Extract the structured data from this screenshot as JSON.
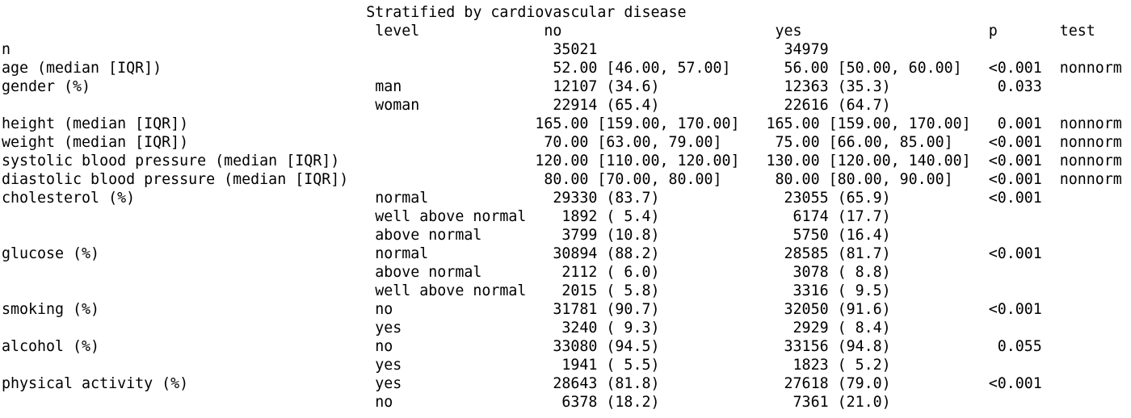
{
  "output": {
    "title": "Stratified by cardiovascular disease",
    "title_col": 41,
    "headers": [
      {
        "label": "level",
        "col": 42
      },
      {
        "label": "no",
        "col": 61
      },
      {
        "label": "yes",
        "col": 87
      },
      {
        "label": "p",
        "col": 111
      },
      {
        "label": "test",
        "col": 119
      }
    ],
    "default_cols": {
      "variable": 0,
      "level": 42,
      "no": 62,
      "yes": 88,
      "p": 111,
      "test": 119
    },
    "rows": [
      {
        "variable": "n",
        "no": "35021",
        "yes": "34979"
      },
      {
        "variable": "age (median [IQR])",
        "no": "52.00 [46.00, 57.00]",
        "yes": "56.00 [50.00, 60.00]",
        "p": "<0.001",
        "test": "nonnorm"
      },
      {
        "variable": "gender (%)",
        "level": "man",
        "no": "12107 (34.6)",
        "yes": "12363 (35.3)",
        "p": " 0.033"
      },
      {
        "level": "woman",
        "no": "22914 (65.4)",
        "yes": "22616 (64.7)"
      },
      {
        "variable": "height (median [IQR])",
        "no": "165.00 [159.00, 170.00]",
        "yes": "165.00 [159.00, 170.00]",
        "p": " 0.001",
        "test": "nonnorm",
        "no_col": 60,
        "yes_col": 86
      },
      {
        "variable": "weight (median [IQR])",
        "no": "70.00 [63.00, 79.00]",
        "yes": "75.00 [66.00, 85.00]",
        "p": "<0.001",
        "test": "nonnorm",
        "no_col": 61,
        "yes_col": 87
      },
      {
        "variable": "systolic blood pressure (median [IQR])",
        "no": "120.00 [110.00, 120.00]",
        "yes": "130.00 [120.00, 140.00]",
        "p": "<0.001",
        "test": "nonnorm",
        "no_col": 60,
        "yes_col": 86
      },
      {
        "variable": "diastolic blood pressure (median [IQR])",
        "no": "80.00 [70.00, 80.00]",
        "yes": "80.00 [80.00, 90.00]",
        "p": "<0.001",
        "test": "nonnorm",
        "no_col": 61,
        "yes_col": 87
      },
      {
        "variable": "cholesterol (%)",
        "level": "normal",
        "no": "29330 (83.7)",
        "yes": "23055 (65.9)",
        "p": "<0.001"
      },
      {
        "level": "well above normal",
        "no": " 1892 ( 5.4)",
        "yes": " 6174 (17.7)"
      },
      {
        "level": "above normal",
        "no": " 3799 (10.8)",
        "yes": " 5750 (16.4)"
      },
      {
        "variable": "glucose (%)",
        "level": "normal",
        "no": "30894 (88.2)",
        "yes": "28585 (81.7)",
        "p": "<0.001"
      },
      {
        "level": "above normal",
        "no": " 2112 ( 6.0)",
        "yes": " 3078 ( 8.8)"
      },
      {
        "level": "well above normal",
        "no": " 2015 ( 5.8)",
        "yes": " 3316 ( 9.5)"
      },
      {
        "variable": "smoking (%)",
        "level": "no",
        "no": "31781 (90.7)",
        "yes": "32050 (91.6)",
        "p": "<0.001"
      },
      {
        "level": "yes",
        "no": " 3240 ( 9.3)",
        "yes": " 2929 ( 8.4)"
      },
      {
        "variable": "alcohol (%)",
        "level": "no",
        "no": "33080 (94.5)",
        "yes": "33156 (94.8)",
        "p": " 0.055"
      },
      {
        "level": "yes",
        "no": " 1941 ( 5.5)",
        "yes": " 1823 ( 5.2)"
      },
      {
        "variable": "physical activity (%)",
        "level": "yes",
        "no": "28643 (81.8)",
        "yes": "27618 (79.0)",
        "p": "<0.001"
      },
      {
        "level": "no",
        "no": " 6378 (18.2)",
        "yes": " 7361 (21.0)"
      }
    ],
    "colors": {
      "text": "#000000",
      "background": "#ffffff"
    }
  }
}
